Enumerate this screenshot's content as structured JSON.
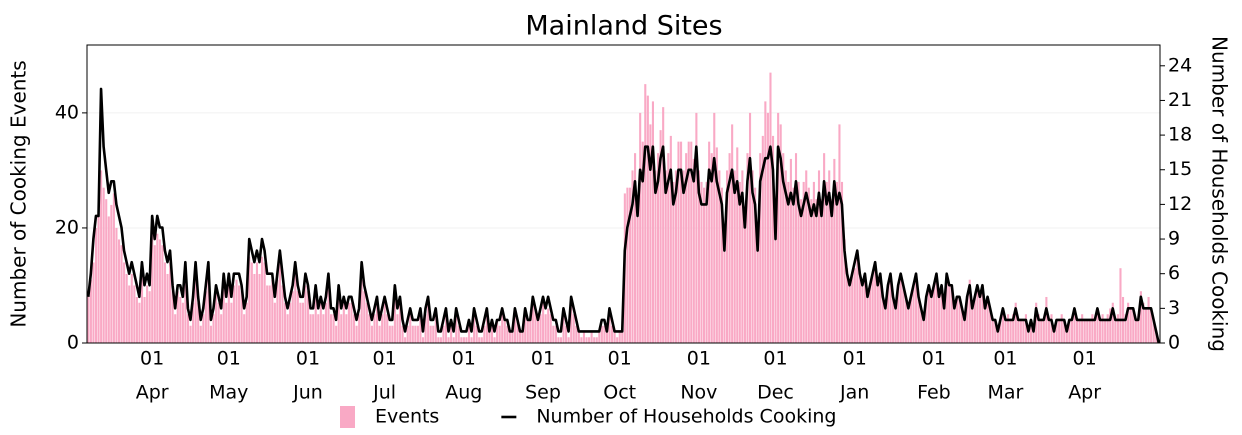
{
  "chart_data": {
    "type": "bar",
    "title": "Mainland Sites",
    "y_label": "Number of Cooking Events",
    "y2_label": "Number of Households Cooking",
    "ylim": [
      0,
      51.8
    ],
    "yticks": [
      0,
      20,
      40
    ],
    "y2lim": [
      0,
      25.8
    ],
    "y2ticks": [
      0,
      3,
      6,
      9,
      12,
      15,
      18,
      21,
      24
    ],
    "grid": true,
    "legend": "bottom",
    "categories": [
      null,
      null,
      null,
      null,
      null,
      null,
      null,
      null,
      null,
      null,
      null,
      null,
      null,
      null,
      null,
      null,
      null,
      null,
      null,
      null,
      null,
      null,
      null,
      null,
      null,
      {
        "day": "01",
        "month": "Apr"
      },
      null,
      null,
      null,
      null,
      null,
      null,
      null,
      null,
      null,
      null,
      null,
      null,
      null,
      null,
      null,
      null,
      null,
      null,
      null,
      null,
      null,
      null,
      null,
      null,
      null,
      null,
      null,
      null,
      null,
      {
        "day": "01",
        "month": "May"
      },
      null,
      null,
      null,
      null,
      null,
      null,
      null,
      null,
      null,
      null,
      null,
      null,
      null,
      null,
      null,
      null,
      null,
      null,
      null,
      null,
      null,
      null,
      null,
      null,
      null,
      null,
      null,
      null,
      null,
      null,
      {
        "day": "01",
        "month": "Jun"
      },
      null,
      null,
      null,
      null,
      null,
      null,
      null,
      null,
      null,
      null,
      null,
      null,
      null,
      null,
      null,
      null,
      null,
      null,
      null,
      null,
      null,
      null,
      null,
      null,
      null,
      null,
      null,
      null,
      null,
      {
        "day": "01",
        "month": "Jul"
      },
      null,
      null,
      null,
      null,
      null,
      null,
      null,
      null,
      null,
      null,
      null,
      null,
      null,
      null,
      null,
      null,
      null,
      null,
      null,
      null,
      null,
      null,
      null,
      null,
      null,
      null,
      null,
      null,
      null,
      null,
      {
        "day": "01",
        "month": "Aug"
      },
      null,
      null,
      null,
      null,
      null,
      null,
      null,
      null,
      null,
      null,
      null,
      null,
      null,
      null,
      null,
      null,
      null,
      null,
      null,
      null,
      null,
      null,
      null,
      null,
      null,
      null,
      null,
      null,
      null,
      null,
      {
        "day": "01",
        "month": "Sep"
      },
      null,
      null,
      null,
      null,
      null,
      null,
      null,
      null,
      null,
      null,
      null,
      null,
      null,
      null,
      null,
      null,
      null,
      null,
      null,
      null,
      null,
      null,
      null,
      null,
      null,
      null,
      null,
      null,
      null,
      {
        "day": "01",
        "month": "Oct"
      },
      null,
      null,
      null,
      null,
      null,
      null,
      null,
      null,
      null,
      null,
      null,
      null,
      null,
      null,
      null,
      null,
      null,
      null,
      null,
      null,
      null,
      null,
      null,
      null,
      null,
      null,
      null,
      null,
      null,
      null,
      {
        "day": "01",
        "month": "Nov"
      },
      null,
      null,
      null,
      null,
      null,
      null,
      null,
      null,
      null,
      null,
      null,
      null,
      null,
      null,
      null,
      null,
      null,
      null,
      null,
      null,
      null,
      null,
      null,
      null,
      null,
      null,
      null,
      null,
      null,
      {
        "day": "01",
        "month": "Dec"
      },
      null,
      null,
      null,
      null,
      null,
      null,
      null,
      null,
      null,
      null,
      null,
      null,
      null,
      null,
      null,
      null,
      null,
      null,
      null,
      null,
      null,
      null,
      null,
      null,
      null,
      null,
      null,
      null,
      null,
      null,
      {
        "day": "01",
        "month": "Jan"
      },
      null,
      null,
      null,
      null,
      null,
      null,
      null,
      null,
      null,
      null,
      null,
      null,
      null,
      null,
      null,
      null,
      null,
      null,
      null,
      null,
      null,
      null,
      null,
      null,
      null,
      null,
      null,
      null,
      null,
      null,
      {
        "day": "01",
        "month": "Feb"
      },
      null,
      null,
      null,
      null,
      null,
      null,
      null,
      null,
      null,
      null,
      null,
      null,
      null,
      null,
      null,
      null,
      null,
      null,
      null,
      null,
      null,
      null,
      null,
      null,
      null,
      null,
      null,
      {
        "day": "01",
        "month": "Mar"
      },
      null,
      null,
      null,
      null,
      null,
      null,
      null,
      null,
      null,
      null,
      null,
      null,
      null,
      null,
      null,
      null,
      null,
      null,
      null,
      null,
      null,
      null,
      null,
      null,
      null,
      null,
      null,
      null,
      null,
      null,
      {
        "day": "01",
        "month": "Apr"
      },
      null,
      null,
      null,
      null,
      null,
      null,
      null,
      null,
      null,
      null,
      null,
      null,
      null,
      null,
      null,
      null,
      null,
      null,
      null,
      null,
      null,
      null,
      null,
      null,
      null,
      null,
      null,
      null,
      null
    ],
    "series": [
      {
        "name": "Events",
        "type": "bar",
        "color": "#f9a9c5",
        "values": [
          9,
          11,
          14,
          20,
          22,
          30,
          27,
          25,
          22,
          24,
          26,
          20,
          18,
          17,
          14,
          12,
          10,
          12,
          10,
          8,
          7,
          12,
          8,
          10,
          9,
          20,
          17,
          19,
          18,
          17,
          14,
          12,
          14,
          9,
          5,
          9,
          8,
          7,
          12,
          5,
          3,
          7,
          12,
          7,
          3,
          5,
          9,
          12,
          3,
          5,
          9,
          7,
          5,
          10,
          7,
          10,
          7,
          10,
          11,
          10,
          9,
          5,
          7,
          15,
          14,
          12,
          14,
          12,
          15,
          14,
          10,
          10,
          11,
          7,
          11,
          14,
          10,
          7,
          5,
          7,
          9,
          12,
          9,
          7,
          7,
          10,
          9,
          5,
          5,
          9,
          5,
          7,
          5,
          7,
          10,
          5,
          5,
          3,
          9,
          5,
          7,
          5,
          7,
          7,
          5,
          3,
          5,
          11,
          9,
          7,
          5,
          3,
          5,
          7,
          3,
          5,
          7,
          5,
          3,
          3,
          9,
          5,
          7,
          3,
          1,
          3,
          5,
          3,
          3,
          3,
          5,
          1,
          5,
          7,
          3,
          3,
          5,
          1,
          1,
          3,
          5,
          1,
          3,
          1,
          5,
          3,
          1,
          1,
          1,
          3,
          1,
          5,
          3,
          1,
          1,
          3,
          5,
          2,
          3,
          1,
          4,
          3,
          6,
          4,
          3,
          2,
          2,
          6,
          4,
          2,
          2,
          6,
          4,
          4,
          7,
          6,
          4,
          5,
          7,
          5,
          6,
          5,
          3,
          3,
          1,
          1,
          5,
          3,
          1,
          7,
          5,
          3,
          2,
          1,
          2,
          1,
          1,
          2,
          1,
          1,
          2,
          3,
          3,
          2,
          5,
          3,
          2,
          1,
          2,
          2,
          26,
          27,
          27,
          30,
          33,
          25,
          40,
          35,
          45,
          43,
          38,
          42,
          30,
          33,
          37,
          41,
          30,
          33,
          36,
          28,
          30,
          35,
          35,
          30,
          33,
          35,
          35,
          32,
          40,
          30,
          28,
          27,
          28,
          35,
          33,
          40,
          34,
          30,
          27,
          18,
          30,
          33,
          38,
          30,
          34,
          28,
          30,
          22,
          33,
          40,
          30,
          27,
          18,
          33,
          36,
          42,
          40,
          47,
          36,
          20,
          40,
          38,
          33,
          30,
          28,
          32,
          27,
          33,
          28,
          25,
          28,
          30,
          27,
          25,
          28,
          25,
          30,
          25,
          33,
          28,
          30,
          25,
          32,
          28,
          38,
          28,
          18,
          13,
          10,
          12,
          13,
          16,
          12,
          10,
          12,
          8,
          10,
          12,
          14,
          10,
          12,
          8,
          6,
          10,
          12,
          8,
          6,
          10,
          12,
          10,
          8,
          6,
          8,
          10,
          12,
          8,
          6,
          4,
          8,
          10,
          8,
          10,
          12,
          8,
          10,
          6,
          12,
          10,
          10,
          6,
          8,
          8,
          6,
          4,
          8,
          11,
          6,
          8,
          10,
          8,
          10,
          6,
          8,
          6,
          4,
          4,
          2,
          4,
          6,
          4,
          5,
          4,
          5,
          7,
          4,
          4,
          4,
          5,
          2,
          4,
          2,
          7,
          5,
          4,
          4,
          8,
          4,
          5,
          2,
          4,
          4,
          5,
          4,
          2,
          4,
          4,
          6,
          4,
          4,
          5,
          4,
          4,
          4,
          5,
          4,
          6,
          4,
          5,
          4,
          5,
          6,
          7,
          4,
          5,
          13,
          8,
          5,
          7,
          6,
          6,
          4,
          5,
          9,
          7,
          6,
          8,
          6,
          4,
          2,
          0
        ]
      },
      {
        "name": "Number of Households Cooking",
        "type": "line",
        "axis": "y2",
        "color": "#000000",
        "values": [
          4,
          6,
          9,
          11,
          11,
          22,
          17,
          15,
          13,
          14,
          14,
          12,
          11,
          10,
          8,
          7,
          6,
          7,
          6,
          5,
          4,
          7,
          5,
          6,
          5,
          11,
          9,
          11,
          10,
          10,
          8,
          7,
          8,
          5,
          3,
          5,
          5,
          4,
          7,
          3,
          2,
          4,
          7,
          4,
          2,
          3,
          5,
          7,
          2,
          3,
          5,
          4,
          3,
          6,
          4,
          6,
          4,
          6,
          6,
          6,
          5,
          3,
          4,
          9,
          8,
          7,
          8,
          7,
          9,
          8,
          6,
          6,
          6,
          4,
          6,
          8,
          6,
          4,
          3,
          4,
          5,
          7,
          5,
          4,
          4,
          6,
          5,
          3,
          3,
          5,
          3,
          4,
          3,
          4,
          6,
          3,
          3,
          2,
          5,
          3,
          4,
          3,
          4,
          4,
          3,
          2,
          3,
          7,
          5,
          4,
          3,
          2,
          3,
          4,
          2,
          3,
          4,
          3,
          2,
          2,
          5,
          3,
          4,
          2,
          1,
          2,
          3,
          2,
          2,
          2,
          3,
          1,
          3,
          4,
          2,
          2,
          3,
          1,
          1,
          2,
          3,
          1,
          2,
          1,
          3,
          2,
          1,
          1,
          1,
          2,
          1,
          3,
          2,
          1,
          1,
          2,
          3,
          1,
          2,
          1,
          2,
          2,
          3,
          2,
          2,
          1,
          1,
          3,
          2,
          1,
          1,
          3,
          2,
          2,
          4,
          3,
          2,
          3,
          4,
          3,
          4,
          3,
          2,
          2,
          1,
          1,
          3,
          2,
          1,
          4,
          3,
          2,
          1,
          1,
          1,
          1,
          1,
          1,
          1,
          1,
          1,
          2,
          2,
          1,
          3,
          2,
          1,
          1,
          1,
          1,
          8,
          10,
          11,
          12,
          14,
          11,
          15,
          14,
          17,
          17,
          15,
          17,
          13,
          14,
          16,
          17,
          13,
          14,
          15,
          12,
          13,
          15,
          15,
          13,
          14,
          15,
          15,
          14,
          17,
          13,
          12,
          12,
          12,
          15,
          14,
          16,
          14,
          13,
          12,
          8,
          13,
          14,
          15,
          13,
          14,
          12,
          13,
          10,
          14,
          16,
          13,
          12,
          8,
          14,
          15,
          16,
          16,
          17,
          15,
          9,
          17,
          16,
          14,
          13,
          12,
          13,
          12,
          14,
          12,
          11,
          12,
          13,
          12,
          11,
          12,
          11,
          13,
          11,
          14,
          12,
          13,
          11,
          14,
          12,
          13,
          12,
          8,
          6,
          5,
          6,
          7,
          8,
          6,
          5,
          6,
          4,
          5,
          6,
          7,
          5,
          6,
          4,
          3,
          5,
          6,
          4,
          3,
          5,
          6,
          5,
          4,
          3,
          4,
          5,
          6,
          4,
          3,
          2,
          4,
          5,
          4,
          5,
          6,
          4,
          5,
          3,
          6,
          5,
          5,
          3,
          4,
          4,
          3,
          2,
          4,
          5,
          3,
          4,
          5,
          4,
          5,
          3,
          4,
          3,
          2,
          2,
          1,
          2,
          3,
          2,
          2,
          2,
          2,
          3,
          2,
          2,
          2,
          2,
          1,
          2,
          1,
          3,
          2,
          2,
          2,
          3,
          2,
          2,
          1,
          2,
          2,
          2,
          2,
          1,
          2,
          2,
          3,
          2,
          2,
          2,
          2,
          2,
          2,
          2,
          2,
          3,
          2,
          2,
          2,
          2,
          2,
          3,
          2,
          2,
          2,
          2,
          2,
          3,
          3,
          3,
          2,
          2,
          4,
          3,
          3,
          3,
          3,
          2,
          1,
          0
        ]
      }
    ]
  }
}
